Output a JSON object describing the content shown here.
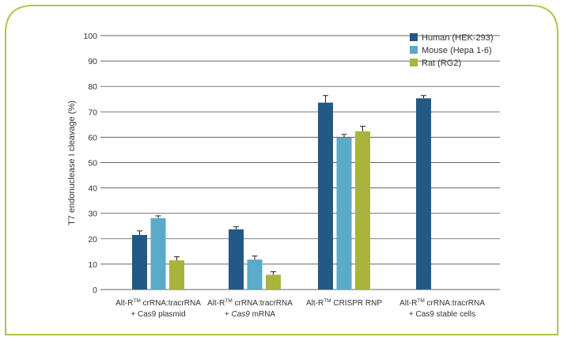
{
  "chart_data": {
    "type": "bar",
    "ylabel": "T7 endonuclease I cleavage (%)",
    "ylim": [
      0,
      100
    ],
    "yticks": [
      0,
      10,
      20,
      30,
      40,
      50,
      60,
      70,
      80,
      90,
      100
    ],
    "grid": true,
    "legend_position": "top-right",
    "categories": [
      {
        "line1_pre": "Alt-R",
        "line1_sup": "TM",
        "line1_post": " crRNA:tracrRNA",
        "line2_pre": "+ ",
        "line2_em": "",
        "line2_post": "Cas9 plasmid"
      },
      {
        "line1_pre": "Alt-R",
        "line1_sup": "TM",
        "line1_post": " crRNA:tracrRNA",
        "line2_pre": "+ ",
        "line2_em": "Cas9",
        "line2_post": " mRNA"
      },
      {
        "line1_pre": "Alt-R",
        "line1_sup": "TM",
        "line1_post": " CRISPR RNP",
        "line2_pre": "",
        "line2_em": "",
        "line2_post": ""
      },
      {
        "line1_pre": "Alt-R",
        "line1_sup": "TM",
        "line1_post": " crRNA:tracrRNA",
        "line2_pre": "+ ",
        "line2_em": "",
        "line2_post": "Cas9 stable cells"
      }
    ],
    "series": [
      {
        "name": "Human (HEK-293)",
        "color": "#215a84",
        "values": [
          21.5,
          23.7,
          73.6,
          75.3
        ],
        "errors": [
          1.6,
          1.0,
          2.8,
          1.1
        ]
      },
      {
        "name": "Mouse (Hepa 1-6)",
        "color": "#5aaac8",
        "values": [
          28.1,
          11.8,
          59.8,
          null
        ],
        "errors": [
          0.9,
          1.4,
          1.3,
          null
        ]
      },
      {
        "name": "Rat (RG2)",
        "color": "#a9b43c",
        "values": [
          11.5,
          5.8,
          62.3,
          null
        ],
        "errors": [
          1.4,
          1.2,
          2.0,
          null
        ]
      }
    ]
  },
  "colors": {
    "frame_border": "#b7c24a",
    "gridline": "#333333",
    "error_bar": "#222222"
  }
}
